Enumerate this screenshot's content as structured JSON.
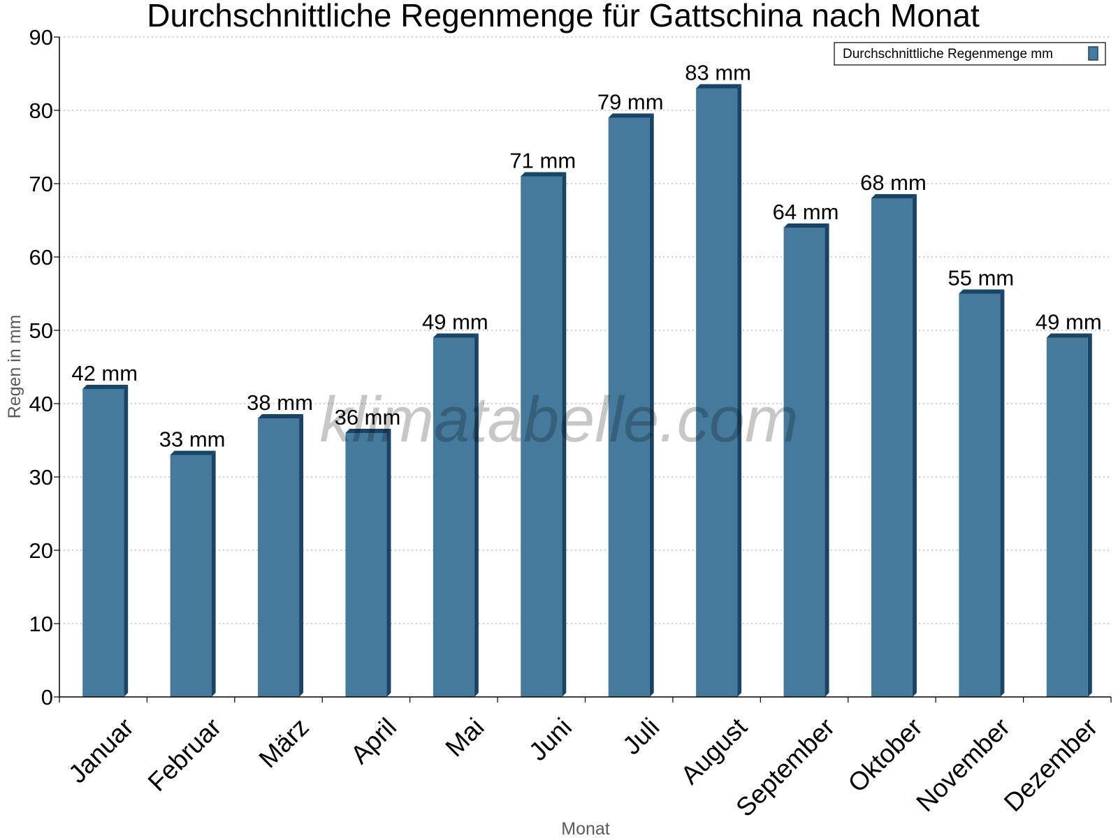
{
  "chart_data": {
    "type": "bar",
    "title": "Durchschnittliche Regenmenge für Gattschina nach Monat",
    "xlabel": "Monat",
    "ylabel": "Regen in mm",
    "ylim": [
      0,
      90
    ],
    "yticks": [
      0,
      10,
      20,
      30,
      40,
      50,
      60,
      70,
      80,
      90
    ],
    "grid": true,
    "legend_position": "top-right",
    "categories": [
      "Januar",
      "Februar",
      "März",
      "April",
      "Mai",
      "Juni",
      "Juli",
      "August",
      "September",
      "Oktober",
      "November",
      "Dezember"
    ],
    "series": [
      {
        "name": "Durchschnittliche Regenmenge mm",
        "values": [
          42,
          33,
          38,
          36,
          49,
          71,
          79,
          83,
          64,
          68,
          55,
          49
        ],
        "labels": [
          "42 mm",
          "33 mm",
          "38 mm",
          "36 mm",
          "49 mm",
          "71 mm",
          "79 mm",
          "83 mm",
          "64 mm",
          "68 mm",
          "55 mm",
          "49 mm"
        ],
        "color": "#467a9c",
        "edge_color": "#1a4466"
      }
    ],
    "watermark": "klimatabelle.com"
  }
}
